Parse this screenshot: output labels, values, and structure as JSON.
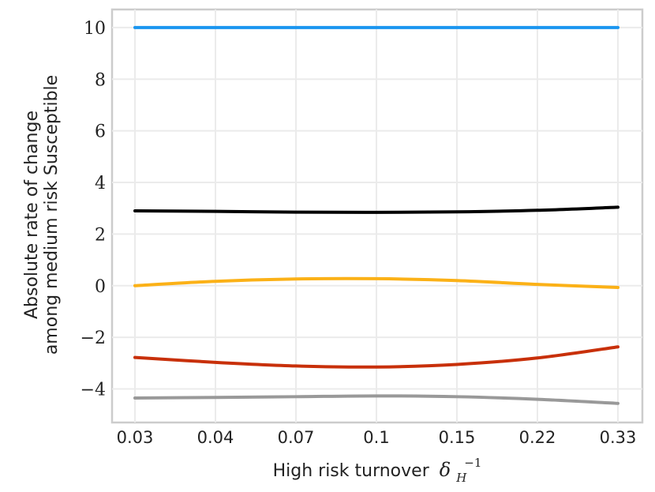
{
  "chart_data": {
    "type": "line",
    "title": "",
    "xlabel": "High risk turnover",
    "xlabel_symbol": "δ",
    "xlabel_subscript": "H",
    "xlabel_superscript": "−1",
    "ylabel_line1": "Absolute rate of change",
    "ylabel_line2": "among medium risk Susceptible",
    "categories": [
      "0.03",
      "0.04",
      "0.07",
      "0.1",
      "0.15",
      "0.22",
      "0.33"
    ],
    "yticks": [
      10,
      8,
      6,
      4,
      2,
      0,
      -2,
      -4
    ],
    "ytick_labels": [
      "10",
      "8",
      "6",
      "4",
      "2",
      "0",
      "−2",
      "−4"
    ],
    "ylim": [
      -5.3,
      10.7
    ],
    "grid": true,
    "series": [
      {
        "name": "blue",
        "color": "#1a96f0",
        "values": [
          10.0,
          10.0,
          10.0,
          10.0,
          10.0,
          10.0,
          10.0
        ]
      },
      {
        "name": "black",
        "color": "#000000",
        "values": [
          2.9,
          2.88,
          2.85,
          2.84,
          2.86,
          2.92,
          3.04
        ]
      },
      {
        "name": "yellow",
        "color": "#fbb117",
        "values": [
          0.0,
          0.17,
          0.26,
          0.27,
          0.2,
          0.05,
          -0.07
        ]
      },
      {
        "name": "red",
        "color": "#c8300a",
        "values": [
          -2.78,
          -2.97,
          -3.11,
          -3.15,
          -3.05,
          -2.8,
          -2.37
        ]
      },
      {
        "name": "gray",
        "color": "#999999",
        "values": [
          -4.35,
          -4.33,
          -4.3,
          -4.27,
          -4.3,
          -4.4,
          -4.56
        ]
      }
    ]
  }
}
